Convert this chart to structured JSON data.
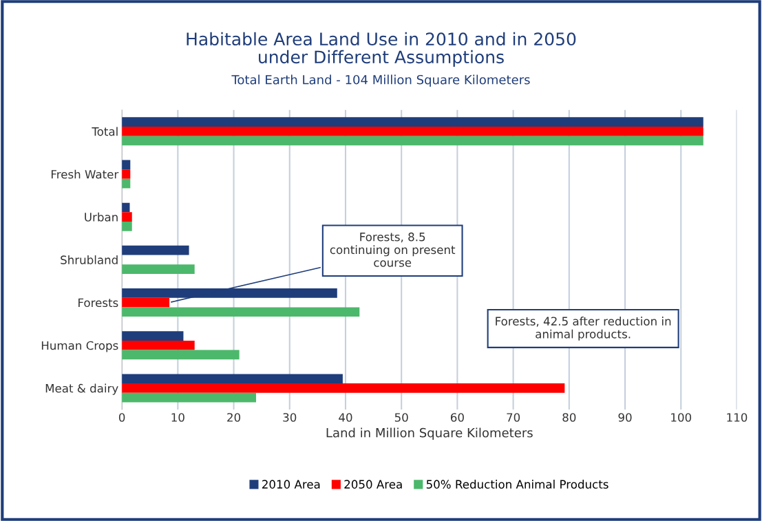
{
  "chart_data": {
    "type": "bar",
    "orientation": "horizontal",
    "title": "Habitable Area Land Use in 2010 and in 2050\nunder Different Assumptions",
    "subtitle": "Total Earth Land - 104 Million Square Kilometers",
    "xlabel": "Land in Million Square Kilometers",
    "categories": [
      "Total",
      "Fresh Water",
      "Urban",
      "Shrubland",
      "Forests",
      "Human Crops",
      "Meat & dairy"
    ],
    "series": [
      {
        "name": "2010 Area",
        "color": "#1f3d7a",
        "values": [
          104,
          1.5,
          1.4,
          12,
          38.5,
          11,
          39.5
        ]
      },
      {
        "name": "2050 Area",
        "color": "#ff0000",
        "values": [
          104,
          1.5,
          1.8,
          null,
          8.5,
          13,
          79.2
        ]
      },
      {
        "name": "50% Reduction Animal Products",
        "color": "#4cb86b",
        "values": [
          104,
          1.5,
          1.8,
          13,
          42.5,
          21,
          24
        ]
      }
    ],
    "xlim": [
      0,
      110
    ],
    "xticks": [
      0,
      10,
      20,
      30,
      40,
      50,
      60,
      70,
      80,
      90,
      100,
      110
    ],
    "grid": "x",
    "legend": "bottom",
    "annotations": [
      {
        "text": "Forests, 8.5\ncontinuing on present\ncourse",
        "x": 8.5,
        "y": "Forests"
      },
      "Forests, 42.5 after reduction in\nanimal products."
    ]
  }
}
